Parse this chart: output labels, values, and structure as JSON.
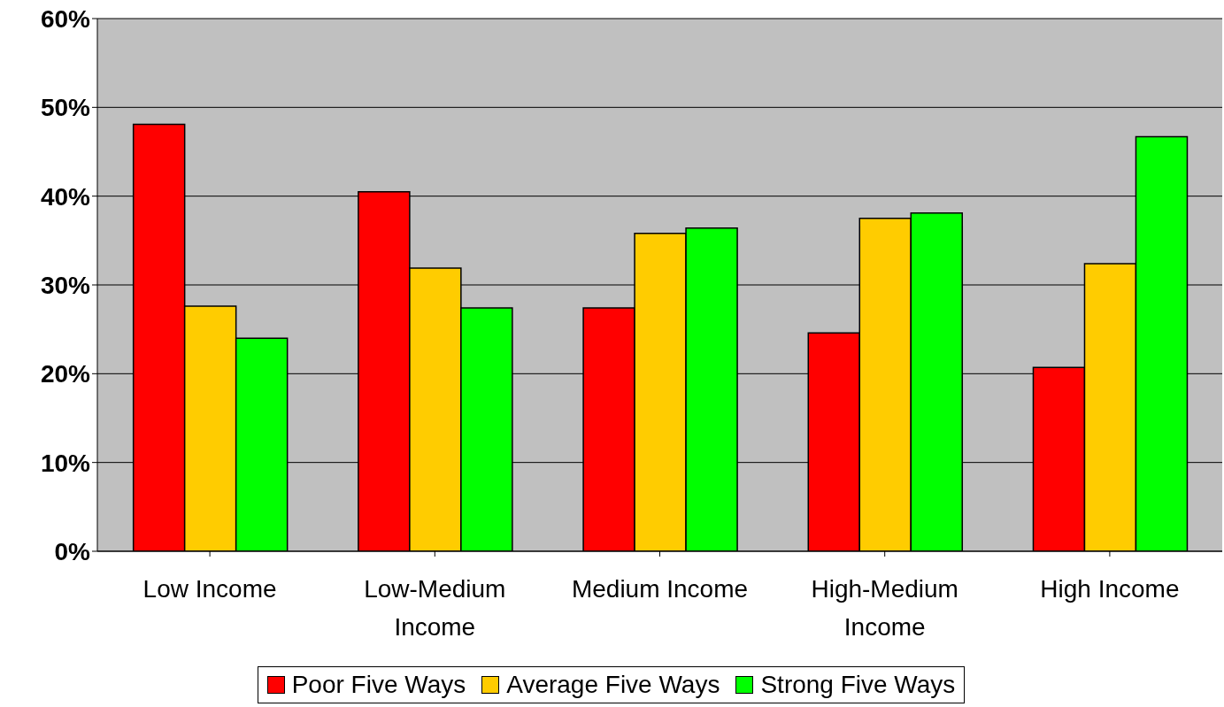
{
  "chart_data": {
    "type": "bar",
    "categories": [
      "Low Income",
      "Low-Medium Income",
      "Medium Income",
      "High-Medium Income",
      "High Income"
    ],
    "series": [
      {
        "name": "Poor Five Ways",
        "color": "#ff0000",
        "values": [
          48.1,
          40.5,
          27.4,
          24.6,
          20.7
        ]
      },
      {
        "name": "Average Five Ways",
        "color": "#ffcc00",
        "values": [
          27.6,
          31.9,
          35.8,
          37.5,
          32.4
        ]
      },
      {
        "name": "Strong Five Ways",
        "color": "#00ff00",
        "values": [
          24.0,
          27.4,
          36.4,
          38.1,
          46.7
        ]
      }
    ],
    "ylim": [
      0,
      60
    ],
    "yticks": [
      {
        "value": 0,
        "label": "0%"
      },
      {
        "value": 10,
        "label": "10%"
      },
      {
        "value": 20,
        "label": "20%"
      },
      {
        "value": 30,
        "label": "30%"
      },
      {
        "value": 40,
        "label": "40%"
      },
      {
        "value": 50,
        "label": "50%"
      },
      {
        "value": 60,
        "label": "60%"
      }
    ],
    "grid": "y",
    "legend": "bottom"
  }
}
